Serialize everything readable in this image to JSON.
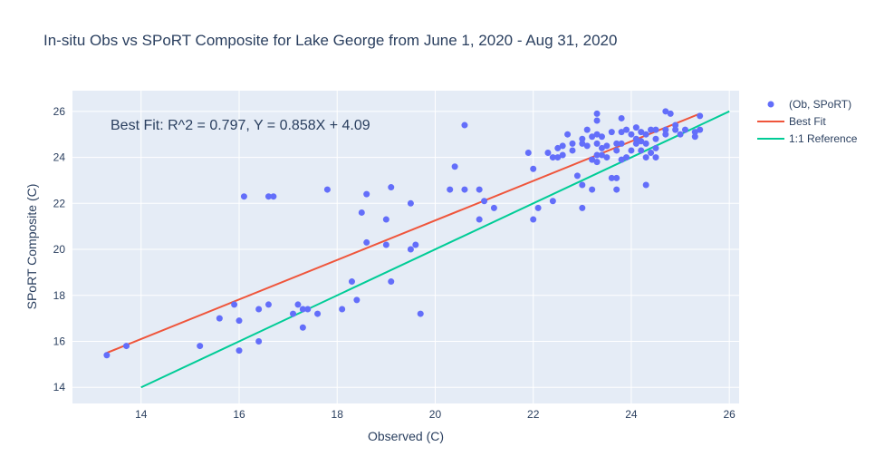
{
  "chart_data": {
    "type": "scatter",
    "title": "In-situ Obs vs SPoRT Composite for Lake George from June 1, 2020 - Aug 31, 2020",
    "xlabel": "Observed (C)",
    "ylabel": "SPoRT Composite (C)",
    "xlim": [
      12.6,
      26.2
    ],
    "ylim": [
      13.3,
      26.9
    ],
    "xticks": [
      14,
      16,
      18,
      20,
      22,
      24,
      26
    ],
    "yticks": [
      14,
      16,
      18,
      20,
      22,
      24,
      26
    ],
    "grid": true,
    "legend_position": "top-right",
    "annotation": "Best Fit: R^2 = 0.797, Y = 0.858X + 4.09",
    "colors": {
      "points": "#636efa",
      "best_fit": "#ef553b",
      "reference": "#00cc96",
      "plot_bg": "#e5ecf6",
      "grid": "#ffffff",
      "text": "#2a3f5f"
    },
    "series": [
      {
        "name": "(Ob, SPoRT)",
        "mode": "markers",
        "points": [
          [
            13.3,
            15.4
          ],
          [
            13.7,
            15.8
          ],
          [
            15.2,
            15.8
          ],
          [
            15.6,
            17.0
          ],
          [
            15.9,
            17.6
          ],
          [
            16.0,
            16.9
          ],
          [
            16.0,
            15.6
          ],
          [
            16.1,
            22.3
          ],
          [
            16.4,
            17.4
          ],
          [
            16.4,
            16.0
          ],
          [
            16.6,
            22.3
          ],
          [
            16.6,
            17.6
          ],
          [
            16.7,
            22.3
          ],
          [
            17.1,
            17.2
          ],
          [
            17.2,
            17.6
          ],
          [
            17.3,
            17.4
          ],
          [
            17.3,
            16.6
          ],
          [
            17.4,
            17.4
          ],
          [
            17.6,
            17.2
          ],
          [
            17.8,
            22.6
          ],
          [
            18.1,
            17.4
          ],
          [
            18.3,
            18.6
          ],
          [
            18.4,
            17.8
          ],
          [
            18.5,
            21.6
          ],
          [
            18.6,
            22.4
          ],
          [
            18.6,
            20.3
          ],
          [
            19.0,
            21.3
          ],
          [
            19.0,
            20.2
          ],
          [
            19.1,
            18.6
          ],
          [
            19.1,
            22.7
          ],
          [
            19.5,
            22.0
          ],
          [
            19.5,
            20.0
          ],
          [
            19.6,
            20.2
          ],
          [
            19.7,
            17.2
          ],
          [
            20.3,
            22.6
          ],
          [
            20.4,
            23.6
          ],
          [
            20.6,
            25.4
          ],
          [
            20.6,
            22.6
          ],
          [
            20.9,
            22.6
          ],
          [
            20.9,
            21.3
          ],
          [
            21.0,
            22.1
          ],
          [
            21.2,
            21.8
          ],
          [
            21.9,
            24.2
          ],
          [
            22.0,
            21.3
          ],
          [
            22.0,
            23.5
          ],
          [
            22.1,
            21.8
          ],
          [
            22.3,
            24.2
          ],
          [
            22.4,
            24.0
          ],
          [
            22.4,
            22.1
          ],
          [
            22.5,
            24.4
          ],
          [
            22.5,
            24.0
          ],
          [
            22.6,
            24.5
          ],
          [
            22.6,
            24.1
          ],
          [
            22.7,
            25.0
          ],
          [
            22.8,
            24.6
          ],
          [
            22.8,
            24.3
          ],
          [
            22.9,
            23.2
          ],
          [
            23.0,
            24.8
          ],
          [
            23.0,
            24.6
          ],
          [
            23.0,
            22.8
          ],
          [
            23.0,
            21.8
          ],
          [
            23.1,
            24.5
          ],
          [
            23.1,
            25.2
          ],
          [
            23.2,
            24.9
          ],
          [
            23.2,
            23.9
          ],
          [
            23.2,
            22.6
          ],
          [
            23.3,
            25.9
          ],
          [
            23.3,
            25.6
          ],
          [
            23.3,
            25.0
          ],
          [
            23.3,
            24.6
          ],
          [
            23.3,
            24.1
          ],
          [
            23.3,
            23.8
          ],
          [
            23.4,
            24.9
          ],
          [
            23.4,
            24.4
          ],
          [
            23.4,
            24.1
          ],
          [
            23.5,
            24.5
          ],
          [
            23.5,
            24.0
          ],
          [
            23.6,
            25.1
          ],
          [
            23.6,
            23.1
          ],
          [
            23.7,
            24.6
          ],
          [
            23.7,
            24.3
          ],
          [
            23.7,
            23.1
          ],
          [
            23.7,
            22.6
          ],
          [
            23.8,
            25.7
          ],
          [
            23.8,
            25.1
          ],
          [
            23.8,
            24.6
          ],
          [
            23.8,
            23.9
          ],
          [
            23.9,
            25.2
          ],
          [
            23.9,
            24.0
          ],
          [
            24.0,
            25.0
          ],
          [
            24.0,
            24.3
          ],
          [
            24.1,
            25.3
          ],
          [
            24.1,
            24.8
          ],
          [
            24.1,
            24.6
          ],
          [
            24.2,
            25.1
          ],
          [
            24.2,
            24.7
          ],
          [
            24.2,
            24.3
          ],
          [
            24.3,
            25.0
          ],
          [
            24.3,
            24.6
          ],
          [
            24.3,
            24.0
          ],
          [
            24.3,
            22.8
          ],
          [
            24.4,
            25.2
          ],
          [
            24.4,
            24.2
          ],
          [
            24.5,
            25.2
          ],
          [
            24.5,
            24.8
          ],
          [
            24.5,
            24.4
          ],
          [
            24.5,
            24.0
          ],
          [
            24.7,
            26.0
          ],
          [
            24.7,
            25.2
          ],
          [
            24.7,
            25.0
          ],
          [
            24.8,
            25.9
          ],
          [
            24.9,
            25.4
          ],
          [
            24.9,
            25.2
          ],
          [
            25.0,
            25.0
          ],
          [
            25.1,
            25.2
          ],
          [
            25.3,
            25.1
          ],
          [
            25.3,
            24.9
          ],
          [
            25.4,
            25.8
          ],
          [
            25.4,
            25.2
          ]
        ]
      },
      {
        "name": "Best Fit",
        "mode": "lines",
        "points": [
          [
            13.3,
            15.5
          ],
          [
            25.4,
            25.9
          ]
        ]
      },
      {
        "name": "1:1 Reference",
        "mode": "lines",
        "points": [
          [
            14.0,
            14.0
          ],
          [
            26.0,
            26.0
          ]
        ]
      }
    ]
  }
}
